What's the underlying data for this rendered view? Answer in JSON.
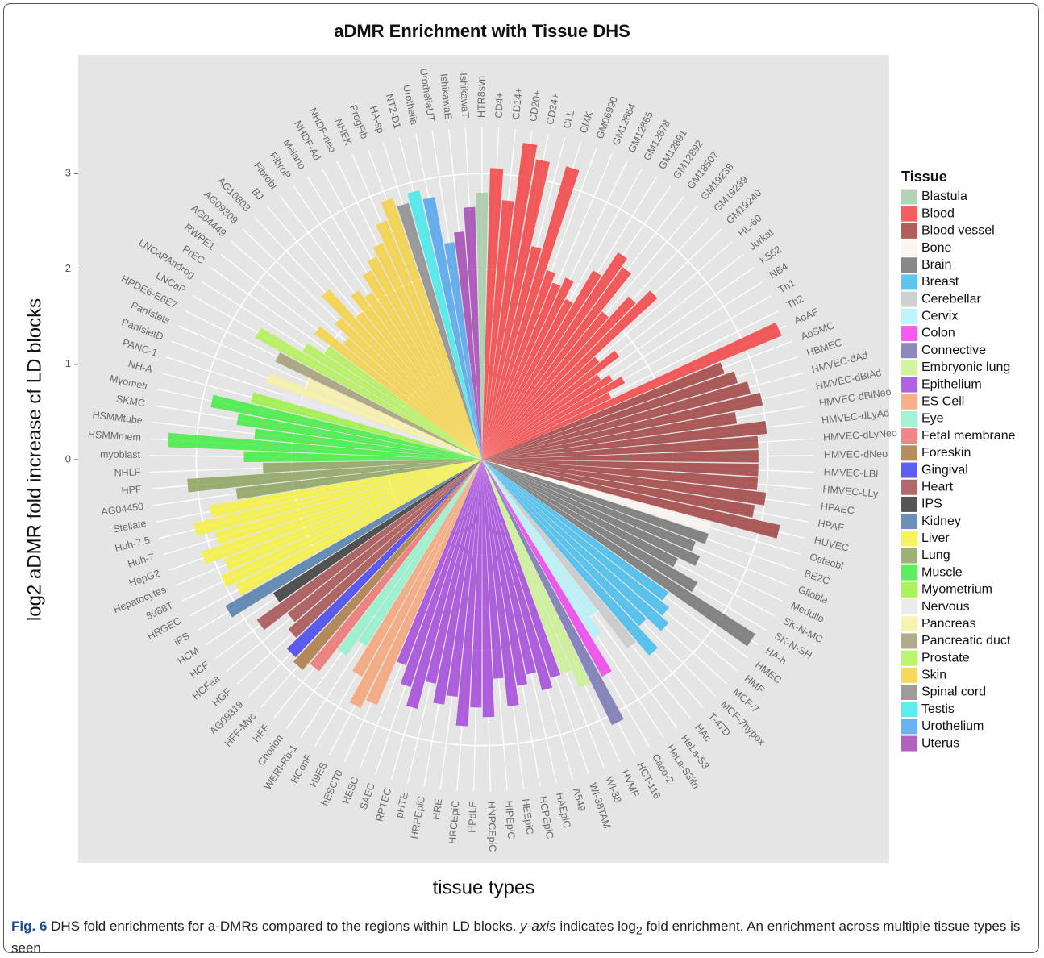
{
  "chart_data": {
    "type": "bar",
    "coord": "polar",
    "title": "aDMR Enrichment with Tissue DHS",
    "xlabel": "tissue types",
    "ylabel": "log2 aDMR fold increase cf LD blocks",
    "ylim": [
      0,
      3.4
    ],
    "yticks": [
      0,
      1,
      2,
      3
    ],
    "grid": true,
    "categories": [
      "HTR8svn",
      "CD4+",
      "CD14+",
      "CD20+",
      "CD34+",
      "CLL",
      "CMK",
      "GM06990",
      "GM12864",
      "GM12865",
      "GM12878",
      "GM12891",
      "GM12892",
      "GM18507",
      "GM19238",
      "GM19239",
      "GM19240",
      "HL-60",
      "Jurkat",
      "K562",
      "NB4",
      "Th1",
      "Th2",
      "AoAF",
      "AoSMC",
      "HBMEC",
      "HMVEC-dAd",
      "HMVEC-dBlAd",
      "HMVEC-dBlNeo",
      "HMVEC-dLyAd",
      "HMVEC-dLyNeo",
      "HMVEC-dNeo",
      "HMVEC-LBl",
      "HMVEC-LLy",
      "HPAEC",
      "HPAF",
      "HUVEC",
      "Osteobl",
      "BE2C",
      "Gliobla",
      "Medullo",
      "SK-N-MC",
      "SK-N-SH",
      "HA-h",
      "HMEC",
      "HMF",
      "MCF-7",
      "MCF-7hypox",
      "T-47D",
      "HAc",
      "HeLa-S3",
      "HeLa-S3ifn",
      "Caco-2",
      "HCT-116",
      "HVMF",
      "WI-38",
      "WI-38TAM",
      "A549",
      "HAEpiC",
      "HCPEpiC",
      "HEEpiC",
      "HIPEpiC",
      "HNPCEpiC",
      "HPdLF",
      "HRCEpiC",
      "HRE",
      "HRPEpiC",
      "pHTE",
      "RPTEC",
      "SAEC",
      "HESC",
      "hESCT0",
      "H9ES",
      "HConF",
      "WERI-Rb-1",
      "Chorion",
      "HFF",
      "HFF-Myc",
      "AG09319",
      "HGF",
      "HCFaa",
      "HCF",
      "HCM",
      "iPS",
      "HRGEC",
      "8988T",
      "Hepatocytes",
      "HepG2",
      "Huh-7",
      "Huh-7.5",
      "Stellate",
      "AG04450",
      "HPF",
      "NHLF",
      "myoblast",
      "HSMMmem",
      "HSMMtube",
      "SKMC",
      "Myometr",
      "NH-A",
      "PANC-1",
      "PanIsletD",
      "PanIslets",
      "HPDE6-E6E7",
      "LNCaP",
      "LNCaPAndrog",
      "PrEC",
      "RWPE1",
      "AG04449",
      "AG09309",
      "AG10803",
      "BJ",
      "Fibrobl",
      "FibroP",
      "Melano",
      "NHDF-Ad",
      "NHDF-neo",
      "NHEK",
      "ProgFib",
      "HA-sp",
      "NT2-D1",
      "Urothelia",
      "UrotheliaUT",
      "IshikawaE",
      "IshikawaT"
    ],
    "values": [
      2.8,
      3.06,
      2.73,
      3.35,
      3.2,
      2.3,
      3.2,
      2.1,
      2.0,
      2.1,
      1.9,
      2.3,
      2.6,
      2.5,
      2.0,
      2.3,
      2.5,
      1.6,
      1.8,
      1.5,
      1.6,
      1.7,
      1.5,
      3.4,
      2.7,
      2.8,
      2.9,
      3.0,
      2.7,
      3.0,
      2.9,
      2.9,
      2.9,
      2.9,
      3.0,
      2.9,
      3.2,
      2.5,
      2.5,
      2.4,
      2.5,
      2.3,
      2.6,
      3.4,
      2.4,
      2.5,
      2.6,
      2.4,
      2.7,
      2.5,
      2.0,
      2.2,
      2.6,
      3.1,
      2.6,
      2.4,
      2.4,
      2.5,
      2.3,
      2.4,
      2.6,
      2.3,
      2.7,
      2.6,
      2.8,
      2.5,
      2.6,
      2.4,
      2.7,
      2.5,
      2.3,
      2.8,
      2.9,
      2.6,
      2.3,
      2.5,
      2.8,
      2.9,
      2.85,
      2.7,
      2.6,
      2.9,
      2.6,
      3.1,
      2.9,
      3.0,
      2.9,
      3.1,
      2.9,
      3.1,
      2.9,
      2.6,
      3.1,
      2.3,
      2.5,
      3.3,
      2.4,
      2.6,
      2.9,
      2.5,
      2.2,
      2.4,
      2.0,
      2.4,
      2.7,
      2.2,
      2.0,
      2.2,
      1.9,
      2.1,
      2.4,
      2.0,
      2.2,
      2.1,
      2.3,
      2.4,
      2.5,
      2.7,
      2.9,
      2.8,
      2.9,
      2.8,
      2.3,
      2.4,
      2.65
    ],
    "groups": [
      "Blastula",
      "Blood",
      "Blood",
      "Blood",
      "Blood",
      "Blood",
      "Blood",
      "Blood",
      "Blood",
      "Blood",
      "Blood",
      "Blood",
      "Blood",
      "Blood",
      "Blood",
      "Blood",
      "Blood",
      "Blood",
      "Blood",
      "Blood",
      "Blood",
      "Blood",
      "Blood",
      "Blood",
      "Blood vessel",
      "Blood vessel",
      "Blood vessel",
      "Blood vessel",
      "Blood vessel",
      "Blood vessel",
      "Blood vessel",
      "Blood vessel",
      "Blood vessel",
      "Blood vessel",
      "Blood vessel",
      "Blood vessel",
      "Blood vessel",
      "Bone",
      "Brain",
      "Brain",
      "Brain",
      "Brain",
      "Brain",
      "Brain",
      "Breast",
      "Breast",
      "Breast",
      "Breast",
      "Breast",
      "Cerebellar",
      "Cervix",
      "Cervix",
      "Colon",
      "Connective",
      "Embryonic lung",
      "Embryonic lung",
      "Epithelium",
      "Epithelium",
      "Epithelium",
      "Epithelium",
      "Epithelium",
      "Epithelium",
      "Epithelium",
      "Epithelium",
      "Epithelium",
      "Epithelium",
      "Epithelium",
      "Epithelium",
      "Epithelium",
      "Epithelium",
      "Epithelium",
      "ES Cell",
      "ES Cell",
      "ES Cell",
      "Eye",
      "Eye",
      "Fetal membrane",
      "Foreskin",
      "Gingival",
      "Heart",
      "Heart",
      "Heart",
      "IPS",
      "Kidney",
      "Liver",
      "Liver",
      "Liver",
      "Liver",
      "Liver",
      "Liver",
      "Liver",
      "Lung",
      "Lung",
      "Lung",
      "Muscle",
      "Muscle",
      "Muscle",
      "Muscle",
      "Muscle",
      "Myometrium",
      "Nervous",
      "Pancreas",
      "Pancreas",
      "Pancreatic duct",
      "Prostate",
      "Prostate",
      "Prostate",
      "Skin",
      "Skin",
      "Skin",
      "Skin",
      "Skin",
      "Skin",
      "Skin",
      "Skin",
      "Skin",
      "Skin",
      "Skin",
      "Skin",
      "Spinal cord",
      "Testis",
      "Urothelium",
      "Urothelium",
      "Uterus",
      "Uterus"
    ],
    "legend": {
      "title": "Tissue",
      "position": "right",
      "items": [
        {
          "name": "Blastula",
          "color": "#a3c9a6"
        },
        {
          "name": "Blood",
          "color": "#f23b3b"
        },
        {
          "name": "Blood vessel",
          "color": "#9e3a3a"
        },
        {
          "name": "Bone",
          "color": "#f9f5ef"
        },
        {
          "name": "Brain",
          "color": "#6e6e6e"
        },
        {
          "name": "Breast",
          "color": "#3ab8ec"
        },
        {
          "name": "Cerebellar",
          "color": "#c6c6c6"
        },
        {
          "name": "Cervix",
          "color": "#aef0f8"
        },
        {
          "name": "Colon",
          "color": "#ec3aec"
        },
        {
          "name": "Connective",
          "color": "#7070b0"
        },
        {
          "name": "Embryonic lung",
          "color": "#c8f08a"
        },
        {
          "name": "Epithelium",
          "color": "#a040d8"
        },
        {
          "name": "ES Cell",
          "color": "#f4a070"
        },
        {
          "name": "Eye",
          "color": "#8ef0c8"
        },
        {
          "name": "Fetal membrane",
          "color": "#ec6c6c"
        },
        {
          "name": "Foreskin",
          "color": "#a8743a"
        },
        {
          "name": "Gingival",
          "color": "#3a3aec"
        },
        {
          "name": "Heart",
          "color": "#a04848"
        },
        {
          "name": "IPS",
          "color": "#303030"
        },
        {
          "name": "Kidney",
          "color": "#4a78a8"
        },
        {
          "name": "Liver",
          "color": "#f4f03a"
        },
        {
          "name": "Lung",
          "color": "#88a058"
        },
        {
          "name": "Muscle",
          "color": "#3aec3a"
        },
        {
          "name": "Myometrium",
          "color": "#98f03a"
        },
        {
          "name": "Nervous",
          "color": "#e8e8ec"
        },
        {
          "name": "Pancreas",
          "color": "#f8f0a0"
        },
        {
          "name": "Pancreatic duct",
          "color": "#a09870"
        },
        {
          "name": "Prostate",
          "color": "#b0f050"
        },
        {
          "name": "Skin",
          "color": "#f4d03a"
        },
        {
          "name": "Spinal cord",
          "color": "#888888"
        },
        {
          "name": "Testis",
          "color": "#3ae8ec"
        },
        {
          "name": "Urothelium",
          "color": "#4aa0ec"
        },
        {
          "name": "Uterus",
          "color": "#a040b0"
        }
      ]
    }
  },
  "caption": {
    "label": "Fig. 6",
    "text1": "DHS fold enrichments for a-DMRs compared to the regions within LD blocks.",
    "italic": "y-axis",
    "text2": "indicates log",
    "sub": "2",
    "text3": "fold enrichment. An enrichment across multiple tissue types is seen"
  }
}
